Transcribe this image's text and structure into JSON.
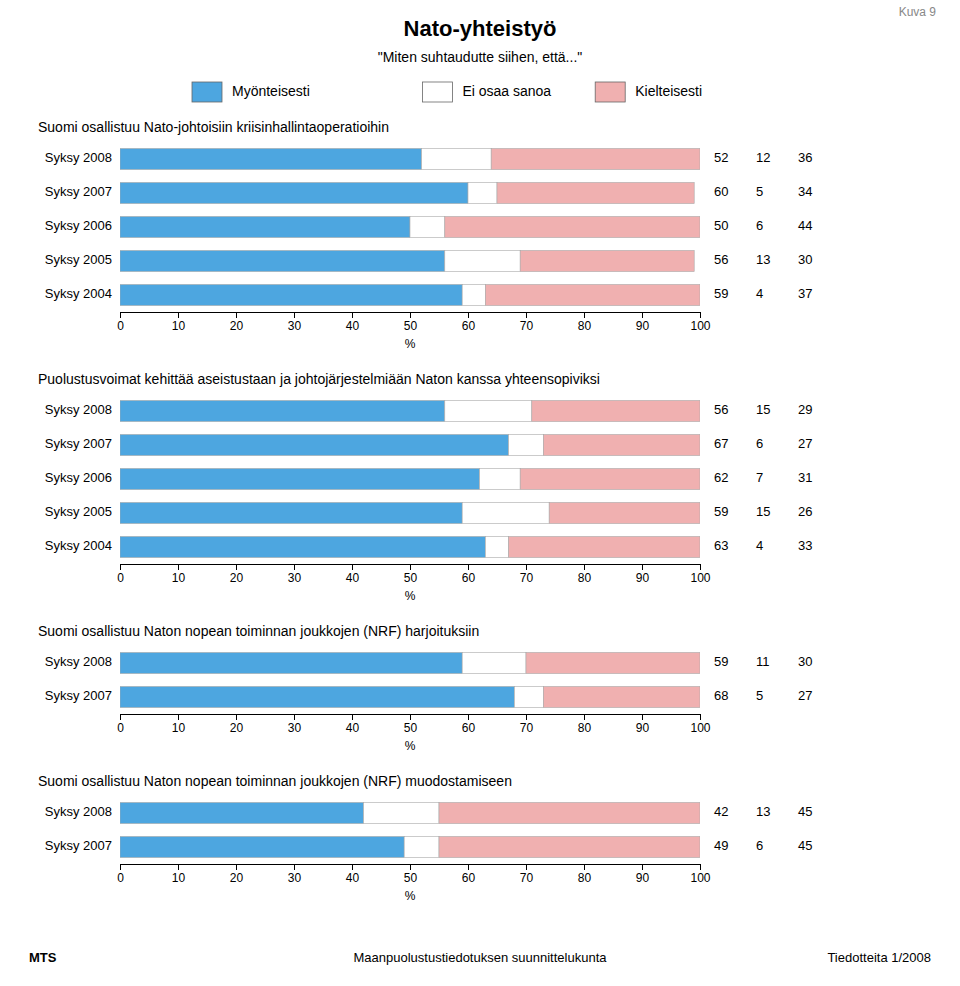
{
  "title": "Nato-yhteistyö",
  "subtitle": "\"Miten suhtaudutte siihen, että...\"",
  "annotations": [
    "Kuva 9",
    "MTS",
    "Maanpuolustustiedotuksen suunnittelukunta",
    "Tiedotteita 1/2008"
  ],
  "chart_data": [
    {
      "type": "bar",
      "orientation": "horizontal",
      "stacked": true,
      "data_labels": true,
      "legend": "top",
      "title": "Suomi osallistuu Nato-johtoisiin kriisinhallintaoperatioihin",
      "categories": [
        "Syksy 2008",
        "Syksy 2007",
        "Syksy 2006",
        "Syksy 2005",
        "Syksy 2004"
      ],
      "series": [
        {
          "name": "Myönteisesti",
          "color": "#4da6e0",
          "values": [
            52,
            60,
            50,
            56,
            59
          ]
        },
        {
          "name": "Ei osaa sanoa",
          "color": "#ffffff",
          "values": [
            12,
            5,
            6,
            13,
            4
          ]
        },
        {
          "name": "Kielteisesti",
          "color": "#f0b0b0",
          "values": [
            36,
            34,
            44,
            30,
            37
          ]
        }
      ],
      "xlabel": "%",
      "xlim": [
        0,
        100
      ],
      "xticks": [
        0,
        10,
        20,
        30,
        40,
        50,
        60,
        70,
        80,
        90,
        100
      ],
      "grid": false
    },
    {
      "type": "bar",
      "orientation": "horizontal",
      "stacked": true,
      "data_labels": true,
      "title": "Puolustusvoimat kehittää aseistustaan ja johtojärjestelmiään Naton kanssa yhteensopiviksi",
      "categories": [
        "Syksy 2008",
        "Syksy 2007",
        "Syksy 2006",
        "Syksy 2005",
        "Syksy 2004"
      ],
      "series": [
        {
          "name": "Myönteisesti",
          "color": "#4da6e0",
          "values": [
            56,
            67,
            62,
            59,
            63
          ]
        },
        {
          "name": "Ei osaa sanoa",
          "color": "#ffffff",
          "values": [
            15,
            6,
            7,
            15,
            4
          ]
        },
        {
          "name": "Kielteisesti",
          "color": "#f0b0b0",
          "values": [
            29,
            27,
            31,
            26,
            33
          ]
        }
      ],
      "xlabel": "%",
      "xlim": [
        0,
        100
      ],
      "xticks": [
        0,
        10,
        20,
        30,
        40,
        50,
        60,
        70,
        80,
        90,
        100
      ],
      "grid": false
    },
    {
      "type": "bar",
      "orientation": "horizontal",
      "stacked": true,
      "data_labels": true,
      "title": "Suomi osallistuu Naton nopean toiminnan joukkojen (NRF) harjoituksiin",
      "categories": [
        "Syksy 2008",
        "Syksy 2007"
      ],
      "series": [
        {
          "name": "Myönteisesti",
          "color": "#4da6e0",
          "values": [
            59,
            68
          ]
        },
        {
          "name": "Ei osaa sanoa",
          "color": "#ffffff",
          "values": [
            11,
            5
          ]
        },
        {
          "name": "Kielteisesti",
          "color": "#f0b0b0",
          "values": [
            30,
            27
          ]
        }
      ],
      "xlabel": "%",
      "xlim": [
        0,
        100
      ],
      "xticks": [
        0,
        10,
        20,
        30,
        40,
        50,
        60,
        70,
        80,
        90,
        100
      ],
      "grid": false
    },
    {
      "type": "bar",
      "orientation": "horizontal",
      "stacked": true,
      "data_labels": true,
      "title": "Suomi osallistuu Naton nopean toiminnan joukkojen (NRF) muodostamiseen",
      "categories": [
        "Syksy 2008",
        "Syksy 2007"
      ],
      "series": [
        {
          "name": "Myönteisesti",
          "color": "#4da6e0",
          "values": [
            42,
            49
          ]
        },
        {
          "name": "Ei osaa sanoa",
          "color": "#ffffff",
          "values": [
            13,
            6
          ]
        },
        {
          "name": "Kielteisesti",
          "color": "#f0b0b0",
          "values": [
            45,
            45
          ]
        }
      ],
      "xlabel": "%",
      "xlim": [
        0,
        100
      ],
      "xticks": [
        0,
        10,
        20,
        30,
        40,
        50,
        60,
        70,
        80,
        90,
        100
      ],
      "grid": false
    }
  ]
}
